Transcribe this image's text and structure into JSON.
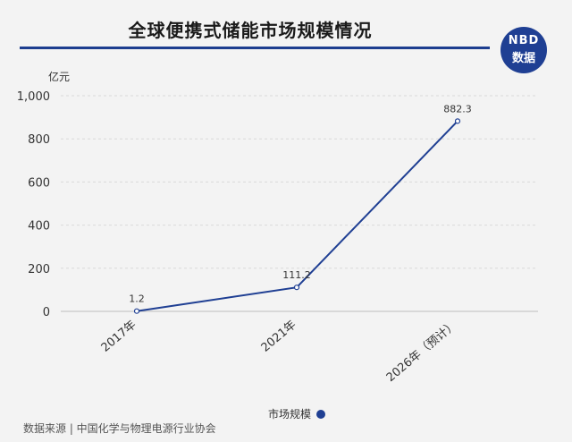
{
  "header": {
    "title": "全球便携式储能市场规模情况",
    "logo_line1": "NBD",
    "logo_line2": "数据"
  },
  "colors": {
    "accent": "#1f3f93",
    "grid": "#d9d9d9",
    "background": "#f3f3f3"
  },
  "chart_data": {
    "type": "line",
    "title": "全球便携式储能市场规模情况",
    "ylabel": "亿元",
    "categories": [
      "2017年",
      "2021年",
      "2026年（预计）"
    ],
    "series": [
      {
        "name": "市场规模",
        "values": [
          1.2,
          111.2,
          882.3
        ],
        "labels": [
          "1.2",
          "111.2",
          "882.3"
        ]
      }
    ],
    "ylim": [
      0,
      1000
    ],
    "yticks": [
      0,
      200,
      400,
      600,
      800,
      1000
    ],
    "ytick_labels": [
      "0",
      "200",
      "400",
      "600",
      "800",
      "1,000"
    ],
    "grid": true,
    "legend": "bottom"
  },
  "footer": {
    "source": "数据来源 | 中国化学与物理电源行业协会"
  }
}
